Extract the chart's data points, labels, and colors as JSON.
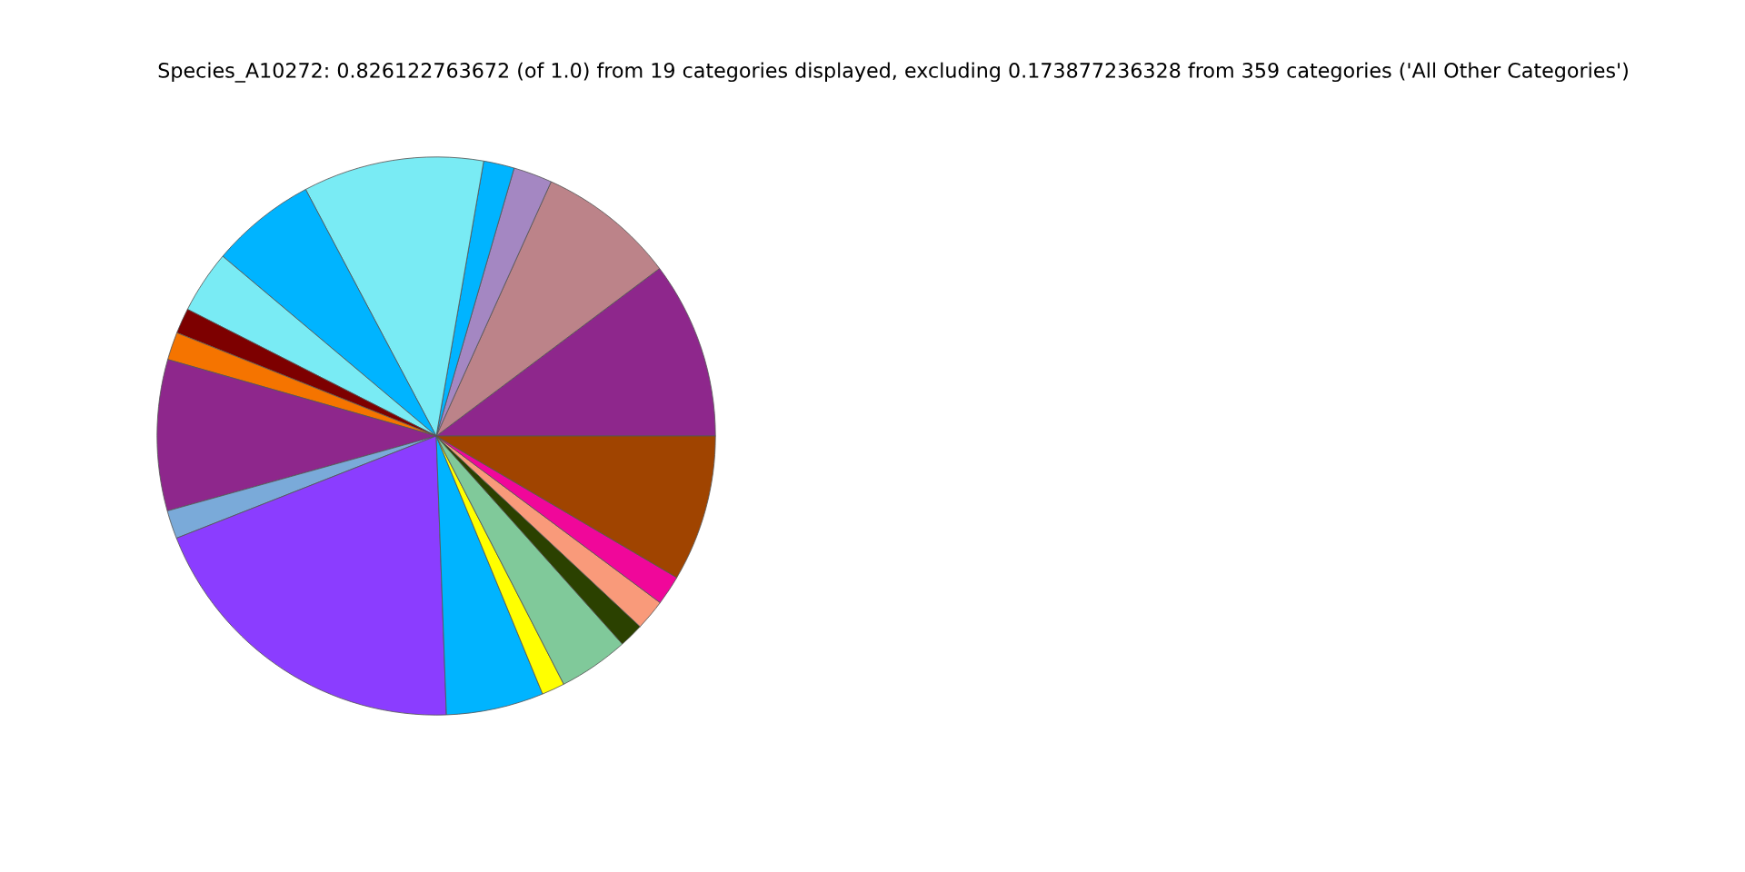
{
  "chart_data": {
    "type": "pie",
    "title": "Species_A10272: 0.826122763672 (of 1.0) from 19 categories displayed, excluding 0.173877236328 from 359 categories ('All Other Categories')",
    "categories": [
      null,
      null,
      null,
      null,
      null,
      null,
      null,
      null,
      null,
      null,
      null,
      null,
      null,
      null,
      null,
      null,
      null,
      null,
      null
    ],
    "values": [
      10.25,
      8.0,
      2.25,
      1.78,
      10.47,
      6.11,
      3.64,
      1.47,
      1.61,
      8.75,
      1.64,
      19.61,
      5.64,
      1.33,
      4.06,
      1.42,
      1.78,
      1.72,
      8.47
    ],
    "colors": [
      "#8e278c",
      "#bc8389",
      "#a487c2",
      "#00b4ff",
      "#79ebf4",
      "#00b4ff",
      "#79ebf4",
      "#7d0000",
      "#f57400",
      "#8e278c",
      "#7aaad9",
      "#8b3dff",
      "#00b4ff",
      "#ffff00",
      "#80c99a",
      "#2b4100",
      "#f99a7a",
      "#f0079a",
      "#a04400"
    ]
  }
}
